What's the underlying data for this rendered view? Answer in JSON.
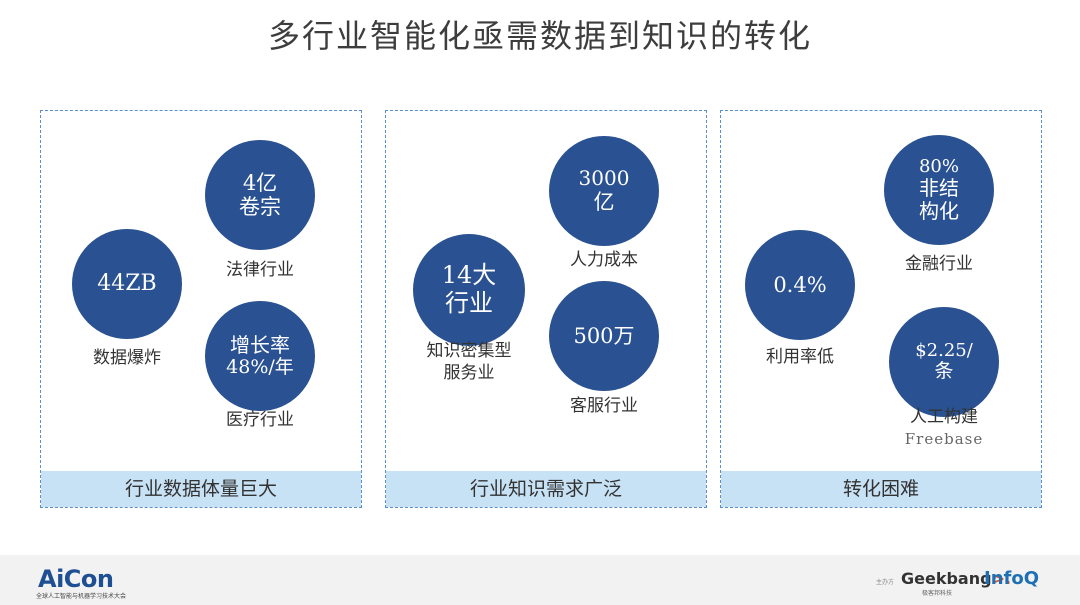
{
  "title": "多行业智能化亟需数据到知识的转化",
  "panels": [
    {
      "footer": "行业数据体量巨大",
      "circles": [
        {
          "line1": "44ZB",
          "line2": "",
          "caption": "数据爆炸"
        },
        {
          "line1": "4亿",
          "line2": "卷宗",
          "caption": "法律行业"
        },
        {
          "line1": "增长率",
          "line2": "48%/年",
          "caption": "医疗行业"
        }
      ]
    },
    {
      "footer": "行业知识需求广泛",
      "circles": [
        {
          "line1": "14大",
          "line2": "行业",
          "caption": "知识密集型",
          "caption2": "服务业"
        },
        {
          "line1": "3000",
          "line2": "亿",
          "caption": "人力成本"
        },
        {
          "line1": "500万",
          "line2": "",
          "caption": "客服行业"
        }
      ]
    },
    {
      "footer": "转化困难",
      "circles": [
        {
          "line1": "0.4%",
          "line2": "",
          "caption": "利用率低"
        },
        {
          "line1": "80%",
          "line2": "非结",
          "line3": "构化",
          "caption": "金融行业"
        },
        {
          "line1": "$2.25/",
          "line2": "条",
          "caption": "人工构建",
          "caption2": "Freebase"
        }
      ]
    }
  ],
  "footer": {
    "aicon_logo": "AiCon",
    "aicon_sub": "全球人工智能与机器学习技术大会",
    "host_label": "主办方",
    "geekbang_logo": "Geekbang",
    "geekbang_arrow": ">.",
    "geekbang_sub": "极客邦科技",
    "infoq_logo": "InfoQ"
  }
}
